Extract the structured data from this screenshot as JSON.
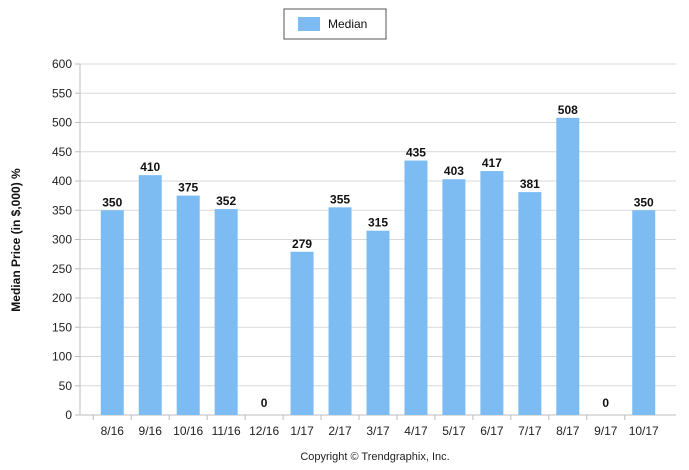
{
  "chart_data": {
    "type": "bar",
    "categories": [
      "8/16",
      "9/16",
      "10/16",
      "11/16",
      "12/16",
      "1/17",
      "2/17",
      "3/17",
      "4/17",
      "5/17",
      "6/17",
      "7/17",
      "8/17",
      "9/17",
      "10/17"
    ],
    "series": [
      {
        "name": "Median",
        "values": [
          350,
          410,
          375,
          352,
          0,
          279,
          355,
          315,
          435,
          403,
          417,
          381,
          508,
          0,
          350
        ]
      }
    ],
    "ylabel": "Median Price (in $,000) %",
    "xlabel": "",
    "ylim": [
      0,
      600
    ],
    "yticks": [
      0,
      50,
      100,
      150,
      200,
      250,
      300,
      350,
      400,
      450,
      500,
      550,
      600
    ],
    "grid": true,
    "legend": "top-center",
    "bar_color": "#7cbcf3",
    "data_labels": true
  },
  "footer": {
    "copyright": "Copyright © Trendgraphix, Inc."
  }
}
